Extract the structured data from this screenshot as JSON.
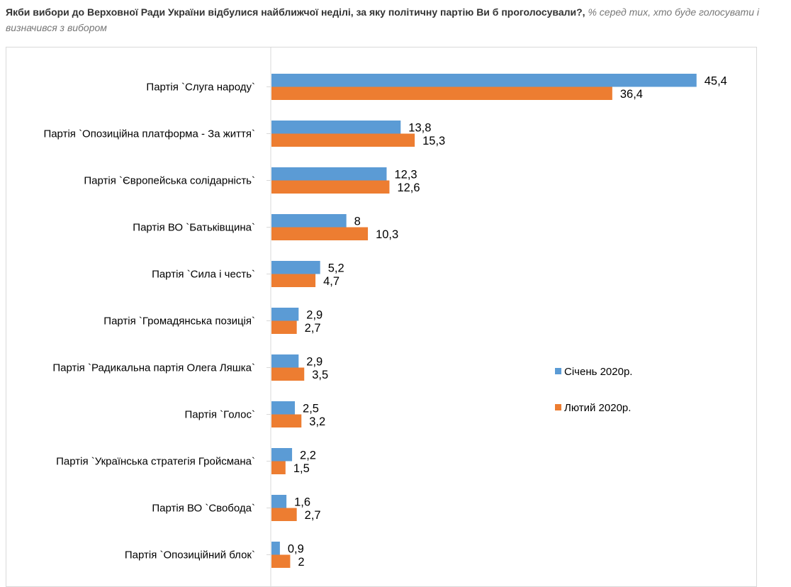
{
  "header": {
    "question": "Якби вибори до Верховної Ради України відбулися найближчої неділі, за яку політичну партію Ви б проголосували?,",
    "note": "% серед тих, хто буде голосувати і визначився з вибором"
  },
  "colors": {
    "series_1": "#5b9bd5",
    "series_2": "#ed7d31",
    "axis": "#d9d9d9"
  },
  "chart_data": {
    "type": "bar",
    "orientation": "horizontal",
    "title": "",
    "xlabel": "",
    "ylabel": "",
    "xlim": [
      0,
      50
    ],
    "grid": false,
    "legend_position": "right",
    "categories": [
      "Партія `Слуга народу`",
      "Партія `Опозиційна платформа - За життя`",
      "Партія `Європейська солідарність`",
      "Партія ВО `Батьківщина`",
      "Партія `Сила і честь`",
      "Партія `Громадянська позиція`",
      "Партія `Радикальна партія Олега Ляшка`",
      "Партія `Голос`",
      "Партія `Українська стратегія Гройсмана`",
      "Партія ВО `Свобода`",
      "Партія `Опозиційний блок`"
    ],
    "series": [
      {
        "name": "Січень 2020р.",
        "values": [
          45.4,
          13.8,
          12.3,
          8,
          5.2,
          2.9,
          2.9,
          2.5,
          2.2,
          1.6,
          0.9
        ],
        "labels": [
          "45,4",
          "13,8",
          "12,3",
          "8",
          "5,2",
          "2,9",
          "2,9",
          "2,5",
          "2,2",
          "1,6",
          "0,9"
        ]
      },
      {
        "name": "Лютий 2020р.",
        "values": [
          36.4,
          15.3,
          12.6,
          10.3,
          4.7,
          2.7,
          3.5,
          3.2,
          1.5,
          2.7,
          2
        ],
        "labels": [
          "36,4",
          "15,3",
          "12,6",
          "10,3",
          "4,7",
          "2,7",
          "3,5",
          "3,2",
          "1,5",
          "2,7",
          "2"
        ]
      }
    ]
  }
}
